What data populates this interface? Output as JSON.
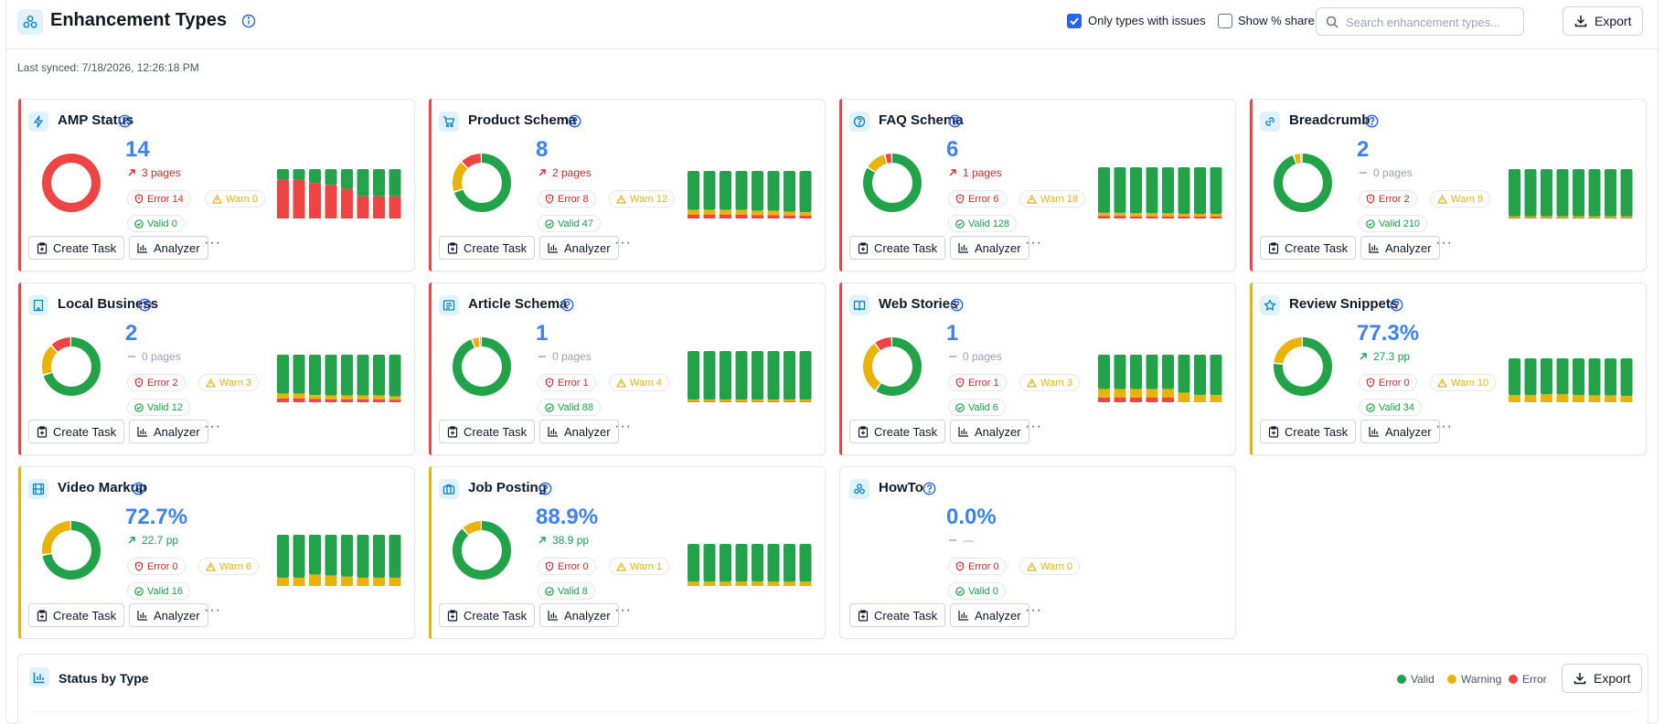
{
  "header": {
    "title": "Enhancement Types",
    "only_issues_label": "Only types with issues",
    "only_issues_checked": true,
    "show_share_label": "Show % share",
    "show_share_checked": false,
    "search_placeholder": "Search enhancement types...",
    "export_label": "Export"
  },
  "last_synced": "Last synced: 7/18/2026, 12:26:18 PM",
  "colors": {
    "valid": "#22a34a",
    "warning": "#eab308",
    "error": "#ef4444",
    "accent": "#3b82f6"
  },
  "card_actions": {
    "create_task": "Create Task",
    "analyzer": "Analyzer",
    "more": "···"
  },
  "cards": [
    {
      "name": "AMP Status",
      "icon": "bolt-icon",
      "status": "error",
      "value": "14",
      "delta": "3 pages",
      "trend": "up-bad",
      "error": 14,
      "warn": 0,
      "valid": 0,
      "error_label": "Error 14",
      "warn_label": "Warn 0",
      "valid_label": "Valid 0",
      "mini": [
        {
          "e": 0.78,
          "w": 0.0
        },
        {
          "e": 0.78,
          "w": 0.0
        },
        {
          "e": 0.72,
          "w": 0.0
        },
        {
          "e": 0.68,
          "w": 0.0
        },
        {
          "e": 0.6,
          "w": 0.0
        },
        {
          "e": 0.45,
          "w": 0.0
        },
        {
          "e": 0.45,
          "w": 0.0
        },
        {
          "e": 0.45,
          "w": 0.0
        }
      ]
    },
    {
      "name": "Product Schema",
      "icon": "cart-icon",
      "status": "error",
      "value": "8",
      "delta": "2 pages",
      "trend": "up-bad",
      "error": 8,
      "warn": 12,
      "valid": 47,
      "error_label": "Error 8",
      "warn_label": "Warn 12",
      "valid_label": "Valid 47",
      "mini": [
        {
          "e": 0.08,
          "w": 0.1
        },
        {
          "e": 0.08,
          "w": 0.1
        },
        {
          "e": 0.08,
          "w": 0.1
        },
        {
          "e": 0.08,
          "w": 0.1
        },
        {
          "e": 0.07,
          "w": 0.09
        },
        {
          "e": 0.07,
          "w": 0.09
        },
        {
          "e": 0.06,
          "w": 0.08
        },
        {
          "e": 0.06,
          "w": 0.07
        }
      ]
    },
    {
      "name": "FAQ Schema",
      "icon": "question-circle-icon",
      "status": "error",
      "value": "6",
      "delta": "1 pages",
      "trend": "up-bad",
      "error": 6,
      "warn": 18,
      "valid": 128,
      "error_label": "Error 6",
      "warn_label": "Warn 18",
      "valid_label": "Valid 128",
      "mini": [
        {
          "e": 0.05,
          "w": 0.06
        },
        {
          "e": 0.05,
          "w": 0.06
        },
        {
          "e": 0.04,
          "w": 0.06
        },
        {
          "e": 0.04,
          "w": 0.06
        },
        {
          "e": 0.04,
          "w": 0.06
        },
        {
          "e": 0.04,
          "w": 0.05
        },
        {
          "e": 0.04,
          "w": 0.05
        },
        {
          "e": 0.04,
          "w": 0.05
        }
      ]
    },
    {
      "name": "Breadcrumb",
      "icon": "link-icon",
      "status": "error",
      "value": "2",
      "delta": "0 pages",
      "trend": "flat",
      "error": 2,
      "warn": 9,
      "valid": 210,
      "error_label": "Error 2",
      "warn_label": "Warn 9",
      "valid_label": "Valid 210",
      "mini": [
        {
          "e": 0.01,
          "w": 0.03
        },
        {
          "e": 0.01,
          "w": 0.03
        },
        {
          "e": 0.01,
          "w": 0.03
        },
        {
          "e": 0.01,
          "w": 0.03
        },
        {
          "e": 0.01,
          "w": 0.03
        },
        {
          "e": 0.01,
          "w": 0.03
        },
        {
          "e": 0.01,
          "w": 0.03
        },
        {
          "e": 0.01,
          "w": 0.03
        }
      ]
    },
    {
      "name": "Local Business",
      "icon": "building-icon",
      "status": "error",
      "value": "2",
      "delta": "0 pages",
      "trend": "flat",
      "error": 2,
      "warn": 3,
      "valid": 12,
      "error_label": "Error 2",
      "warn_label": "Warn 3",
      "valid_label": "Valid 12",
      "mini": [
        {
          "e": 0.08,
          "w": 0.1
        },
        {
          "e": 0.08,
          "w": 0.1
        },
        {
          "e": 0.07,
          "w": 0.08
        },
        {
          "e": 0.06,
          "w": 0.08
        },
        {
          "e": 0.06,
          "w": 0.08
        },
        {
          "e": 0.06,
          "w": 0.08
        },
        {
          "e": 0.06,
          "w": 0.08
        },
        {
          "e": 0.05,
          "w": 0.07
        }
      ]
    },
    {
      "name": "Article Schema",
      "icon": "newspaper-icon",
      "status": "error",
      "value": "1",
      "delta": "0 pages",
      "trend": "flat",
      "error": 1,
      "warn": 4,
      "valid": 88,
      "error_label": "Error 1",
      "warn_label": "Warn 4",
      "valid_label": "Valid 88",
      "mini": [
        {
          "e": 0.01,
          "w": 0.04
        },
        {
          "e": 0.01,
          "w": 0.04
        },
        {
          "e": 0.01,
          "w": 0.04
        },
        {
          "e": 0.01,
          "w": 0.04
        },
        {
          "e": 0.01,
          "w": 0.04
        },
        {
          "e": 0.01,
          "w": 0.04
        },
        {
          "e": 0.01,
          "w": 0.04
        },
        {
          "e": 0.01,
          "w": 0.04
        }
      ]
    },
    {
      "name": "Web Stories",
      "icon": "book-open-icon",
      "status": "error",
      "value": "1",
      "delta": "0 pages",
      "trend": "flat",
      "error": 1,
      "warn": 3,
      "valid": 6,
      "error_label": "Error 1",
      "warn_label": "Warn 3",
      "valid_label": "Valid 6",
      "mini": [
        {
          "e": 0.1,
          "w": 0.18
        },
        {
          "e": 0.1,
          "w": 0.18
        },
        {
          "e": 0.1,
          "w": 0.18
        },
        {
          "e": 0.1,
          "w": 0.18
        },
        {
          "e": 0.1,
          "w": 0.18
        },
        {
          "e": 0.0,
          "w": 0.2
        },
        {
          "e": 0.0,
          "w": 0.15
        },
        {
          "e": 0.0,
          "w": 0.15
        }
      ]
    },
    {
      "name": "Review Snippets",
      "icon": "star-icon",
      "status": "warning",
      "value": "77.3%",
      "delta": "27.3 pp",
      "trend": "up-good",
      "error": 0,
      "warn": 10,
      "valid": 34,
      "error_label": "Error 0",
      "warn_label": "Warn 10",
      "valid_label": "Valid 34",
      "mini": [
        {
          "e": 0.0,
          "w": 0.16
        },
        {
          "e": 0.0,
          "w": 0.16
        },
        {
          "e": 0.0,
          "w": 0.18
        },
        {
          "e": 0.0,
          "w": 0.18
        },
        {
          "e": 0.0,
          "w": 0.16
        },
        {
          "e": 0.0,
          "w": 0.15
        },
        {
          "e": 0.0,
          "w": 0.15
        },
        {
          "e": 0.0,
          "w": 0.14
        }
      ]
    },
    {
      "name": "Video Markup",
      "icon": "film-icon",
      "status": "warning",
      "value": "72.7%",
      "delta": "22.7 pp",
      "trend": "up-good",
      "error": 0,
      "warn": 6,
      "valid": 16,
      "error_label": "Error 0",
      "warn_label": "Warn 6",
      "valid_label": "Valid 16",
      "mini": [
        {
          "e": 0.0,
          "w": 0.16
        },
        {
          "e": 0.0,
          "w": 0.16
        },
        {
          "e": 0.0,
          "w": 0.22
        },
        {
          "e": 0.0,
          "w": 0.2
        },
        {
          "e": 0.0,
          "w": 0.18
        },
        {
          "e": 0.0,
          "w": 0.16
        },
        {
          "e": 0.0,
          "w": 0.16
        },
        {
          "e": 0.0,
          "w": 0.16
        }
      ]
    },
    {
      "name": "Job Posting",
      "icon": "briefcase-icon",
      "status": "warning",
      "value": "88.9%",
      "delta": "38.9 pp",
      "trend": "up-good",
      "error": 0,
      "warn": 1,
      "valid": 8,
      "error_label": "Error 0",
      "warn_label": "Warn 1",
      "valid_label": "Valid 8",
      "mini": [
        {
          "e": 0.0,
          "w": 0.1
        },
        {
          "e": 0.0,
          "w": 0.1
        },
        {
          "e": 0.0,
          "w": 0.1
        },
        {
          "e": 0.0,
          "w": 0.1
        },
        {
          "e": 0.0,
          "w": 0.1
        },
        {
          "e": 0.0,
          "w": 0.1
        },
        {
          "e": 0.0,
          "w": 0.1
        },
        {
          "e": 0.0,
          "w": 0.1
        }
      ]
    },
    {
      "name": "HowTo",
      "icon": "nodes-icon",
      "status": "none",
      "value": "0.0%",
      "delta": "—",
      "trend": "flat",
      "error": 0,
      "warn": 0,
      "valid": 0,
      "error_label": "Error 0",
      "warn_label": "Warn 0",
      "valid_label": "Valid 0",
      "mini": []
    }
  ],
  "status_by_type": {
    "title": "Status by Type",
    "legend": [
      "Valid",
      "Warning",
      "Error"
    ],
    "export_label": "Export"
  }
}
